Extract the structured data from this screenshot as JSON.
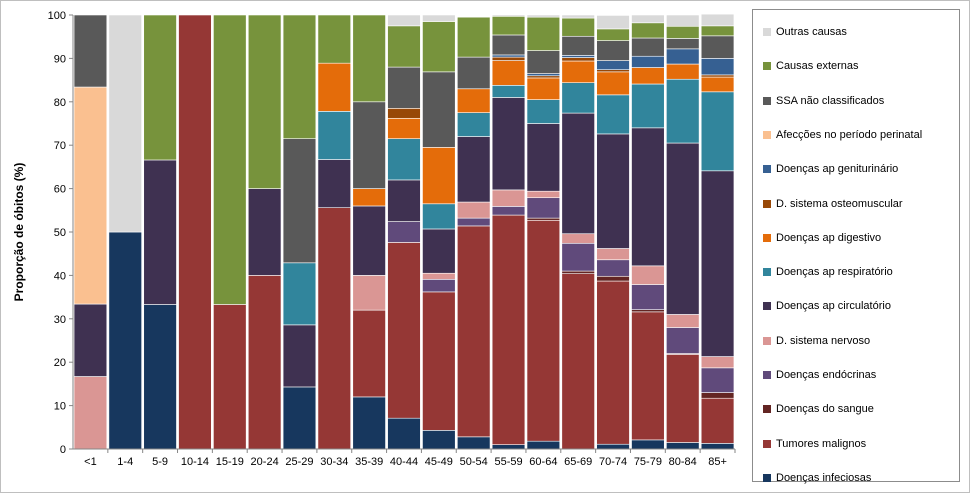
{
  "chart_data": {
    "type": "bar",
    "stacked": true,
    "ylabel": "Proporção de óbitos (%)",
    "xlabel": "",
    "ylim": [
      0,
      100
    ],
    "yticks": [
      0,
      10,
      20,
      30,
      40,
      50,
      60,
      70,
      80,
      90,
      100
    ],
    "categories": [
      "<1",
      "1-4",
      "5-9",
      "10-14",
      "15-19",
      "20-24",
      "25-29",
      "30-34",
      "35-39",
      "40-44",
      "45-49",
      "50-54",
      "55-59",
      "60-64",
      "65-69",
      "70-74",
      "75-79",
      "80-84",
      "85+"
    ],
    "legend_position": "right",
    "series": [
      {
        "name": "Doenças infeciosas",
        "color": "#17375e",
        "values": [
          0,
          50,
          33.3,
          0,
          0,
          0,
          14.3,
          0,
          12,
          7.1,
          4.3,
          2.8,
          1,
          1.8,
          0,
          1.1,
          2.1,
          1.5,
          1.3
        ]
      },
      {
        "name": "Tumores malignos",
        "color": "#953735",
        "values": [
          0,
          0,
          0,
          100,
          33.3,
          40,
          0,
          55.6,
          20,
          40.5,
          31.9,
          48.6,
          52.9,
          50.9,
          40.4,
          37.6,
          29.5,
          20.3,
          10.4
        ]
      },
      {
        "name": "Doenças do sangue",
        "color": "#632523",
        "values": [
          0,
          0,
          0,
          0,
          0,
          0,
          0,
          0,
          0,
          0,
          0,
          0,
          0,
          0.5,
          0.6,
          1.1,
          0.5,
          0.2,
          1.3
        ]
      },
      {
        "name": "Doenças endócrinas",
        "color": "#604a7b",
        "values": [
          0,
          0,
          0,
          0,
          0,
          0,
          0,
          0,
          0,
          4.8,
          2.9,
          1.8,
          2,
          4.7,
          6.4,
          3.8,
          5.8,
          6,
          5.7
        ]
      },
      {
        "name": "D. sistema nervoso",
        "color": "#da9694",
        "values": [
          16.7,
          0,
          0,
          0,
          0,
          0,
          0,
          0,
          8,
          0,
          1.4,
          3.7,
          3.8,
          1.5,
          2.2,
          2.6,
          4.3,
          3,
          2.6
        ]
      },
      {
        "name": "Doenças ap circulatório",
        "color": "#3f3151",
        "values": [
          16.7,
          0,
          33.3,
          0,
          0,
          20,
          14.3,
          11.1,
          16,
          9.6,
          10.2,
          15.1,
          21.3,
          15.6,
          27.8,
          26.4,
          31.8,
          39.5,
          42.8
        ]
      },
      {
        "name": "Doenças ap respiratório",
        "color": "#31859c",
        "values": [
          0,
          0,
          0,
          0,
          0,
          0,
          14.3,
          11.1,
          0,
          9.5,
          5.8,
          5.5,
          2.8,
          5.5,
          7,
          9,
          10.1,
          14.7,
          18.2
        ]
      },
      {
        "name": "Doenças ap digestivo",
        "color": "#e46c0a",
        "values": [
          0,
          0,
          0,
          0,
          0,
          0,
          0,
          11.1,
          4,
          4.7,
          13,
          5.5,
          5.7,
          5,
          5,
          5.3,
          3.8,
          3.5,
          3.4
        ]
      },
      {
        "name": "D. sistema osteomuscular",
        "color": "#984807",
        "values": [
          0,
          0,
          0,
          0,
          0,
          0,
          0,
          0,
          0,
          2.3,
          0,
          0,
          0.8,
          0.5,
          0.8,
          0.5,
          0,
          0,
          0.5
        ]
      },
      {
        "name": "Doenças ap geniturinário",
        "color": "#366092",
        "values": [
          0,
          0,
          0,
          0,
          0,
          0,
          0,
          0,
          0,
          0,
          0,
          0,
          0.5,
          0.5,
          0.5,
          2.1,
          2.6,
          3.5,
          3.8
        ]
      },
      {
        "name": "Afecções no período perinatal",
        "color": "#fac090",
        "values": [
          50,
          0,
          0,
          0,
          0,
          0,
          0,
          0,
          0,
          0,
          0,
          0,
          0,
          0,
          0,
          0,
          0,
          0,
          0
        ]
      },
      {
        "name": "SSA não classificados",
        "color": "#595959",
        "values": [
          16.6,
          0,
          0,
          0,
          0,
          0,
          28.6,
          0,
          20,
          9.5,
          17.4,
          7.3,
          4.6,
          5.3,
          4.4,
          4.6,
          4.2,
          2.4,
          5.2
        ]
      },
      {
        "name": "Causas externas",
        "color": "#77933c",
        "values": [
          0,
          0,
          33.4,
          0,
          66.7,
          40,
          28.5,
          11.1,
          20,
          9.5,
          11.6,
          9.2,
          4.3,
          7.7,
          4.2,
          2.7,
          3.5,
          2.8,
          2.3
        ]
      },
      {
        "name": "Outras causas",
        "color": "#d9d9d9",
        "values": [
          0,
          50,
          0,
          0,
          0,
          0,
          0,
          0,
          0,
          2.5,
          1.5,
          0,
          0.3,
          0.5,
          0.7,
          3.1,
          1.8,
          2.6,
          2.7
        ]
      }
    ]
  }
}
